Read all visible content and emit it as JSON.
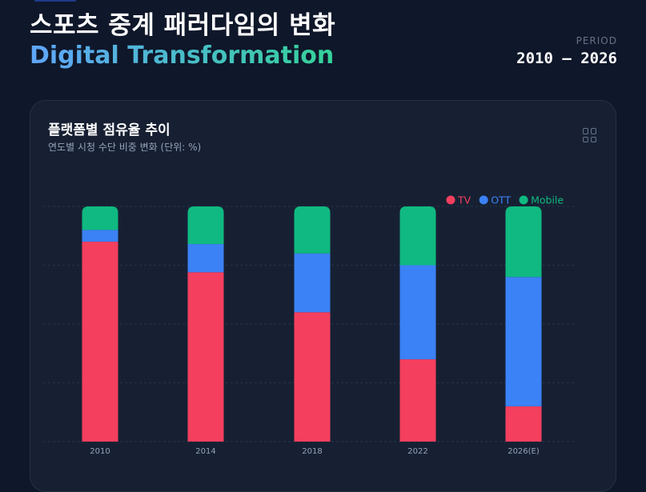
{
  "header": {
    "title": "스포츠 중계 패러다임의 변화",
    "subtitle": "Digital Transformation",
    "period_label": "PERIOD",
    "period": "2010 — 2026"
  },
  "card": {
    "title": "플랫폼별 점유율 추이",
    "subtitle": "연도별 시청 수단 비중 변화 (단위: %)",
    "icon": "grid-icon"
  },
  "chart_data": {
    "type": "bar",
    "stacked": true,
    "categories": [
      "2010",
      "2014",
      "2018",
      "2022",
      "2026(E)"
    ],
    "series": [
      {
        "name": "TV",
        "color": "#f43f5e",
        "values": [
          85,
          72,
          55,
          35,
          15
        ]
      },
      {
        "name": "OTT",
        "color": "#3b82f6",
        "values": [
          5,
          12,
          25,
          40,
          55
        ]
      },
      {
        "name": "Mobile",
        "color": "#10b981",
        "values": [
          10,
          16,
          20,
          25,
          30
        ]
      }
    ],
    "ylim": [
      0,
      100
    ],
    "yticks_shown": false,
    "grid": true,
    "legend": "top-right"
  }
}
